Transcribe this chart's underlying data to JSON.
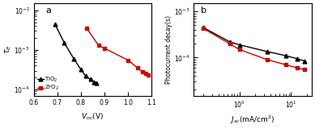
{
  "panel_a": {
    "label": "a",
    "tio2": {
      "x": [
        0.69,
        0.73,
        0.77,
        0.8,
        0.82,
        0.84,
        0.855,
        0.865
      ],
      "y": [
        0.0045,
        0.0015,
        0.0006,
        0.00032,
        0.00022,
        0.00018,
        0.000155,
        0.000145
      ],
      "color": "black",
      "marker": "^",
      "label": "TiO$_2$"
    },
    "zro2": {
      "x": [
        0.825,
        0.875,
        0.9,
        1.0,
        1.04,
        1.06,
        1.075,
        1.085
      ],
      "y": [
        0.0035,
        0.0013,
        0.0011,
        0.00055,
        0.00035,
        0.00028,
        0.00025,
        0.00023
      ],
      "color": "#cc0000",
      "marker": "s",
      "label": "ZrO$_2$"
    },
    "xlabel": "$V_{oc}$(V)",
    "ylabel": "$\\tau_e$",
    "xlim": [
      0.6,
      1.1
    ],
    "ylim": [
      7e-05,
      0.015
    ],
    "yticks": [
      0.0001,
      0.001,
      0.01
    ]
  },
  "panel_b": {
    "label": "b",
    "tio2": {
      "x": [
        0.2,
        0.65,
        1.0,
        3.5,
        8.0,
        13.0,
        18.0
      ],
      "y": [
        0.00045,
        0.00022,
        0.00019,
        0.000135,
        0.00011,
        9.5e-05,
        8.5e-05
      ],
      "color": "black",
      "marker": "^",
      "label": "TiO$_2$"
    },
    "zro2": {
      "x": [
        0.2,
        0.65,
        1.0,
        3.5,
        8.0,
        13.0,
        18.0
      ],
      "y": [
        0.00043,
        0.0002,
        0.00015,
        9e-05,
        7e-05,
        6e-05,
        5.5e-05
      ],
      "color": "#cc0000",
      "marker": "s",
      "label": "ZrO$_2$"
    },
    "xlabel": "$J_{sc}$(mA/cm$^2$)",
    "ylabel": "Photocurrent decay(s)",
    "xlim": [
      0.13,
      25
    ],
    "ylim": [
      1.5e-05,
      0.0015
    ],
    "yticks": [
      1e-05,
      0.0001,
      0.001
    ]
  },
  "background_color": "#ffffff",
  "markersize": 3.5,
  "linewidth": 1.0
}
